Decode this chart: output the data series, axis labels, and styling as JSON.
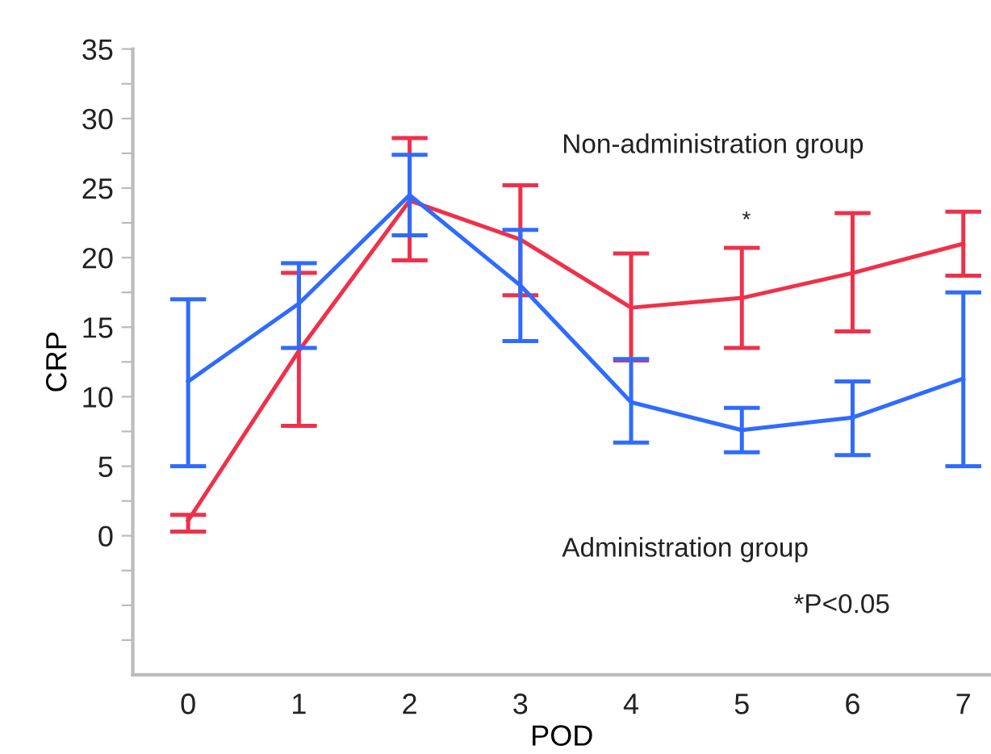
{
  "chart_data": {
    "type": "line",
    "xlabel": "POD",
    "ylabel": "CRP",
    "x": [
      0,
      1,
      2,
      3,
      4,
      5,
      6,
      7
    ],
    "xlim": [
      -0.5,
      7.25
    ],
    "xticks": [
      0,
      1,
      2,
      3,
      4,
      5,
      6,
      7
    ],
    "ylim": [
      -10,
      35
    ],
    "yticks": [
      {
        "value": -7.5,
        "label": null
      },
      {
        "value": -5,
        "label": null
      },
      {
        "value": -2.5,
        "label": null
      },
      0,
      {
        "value": 2.5,
        "label": null
      },
      5,
      {
        "value": 7.5,
        "label": null
      },
      10,
      {
        "value": 12.5,
        "label": null
      },
      15,
      {
        "value": 17.5,
        "label": null
      },
      20,
      {
        "value": 22.5,
        "label": null
      },
      25,
      {
        "value": 27.5,
        "label": null
      },
      30,
      {
        "value": 32.5,
        "label": null
      },
      35
    ],
    "series": [
      {
        "color": "#f0304a",
        "values": [
          1.1,
          13.3,
          24.1,
          21.3,
          16.4,
          17.1,
          18.9,
          21.0
        ],
        "errors": [
          [
            0.3,
            1.5
          ],
          [
            7.9,
            18.9
          ],
          [
            19.8,
            28.6
          ],
          [
            17.3,
            25.2
          ],
          [
            12.6,
            20.3
          ],
          [
            13.5,
            20.7
          ],
          [
            14.7,
            23.2
          ],
          [
            18.7,
            23.3
          ]
        ]
      },
      {
        "color": "#2f6bff",
        "values": [
          11.1,
          16.7,
          24.5,
          18.0,
          9.6,
          7.6,
          8.5,
          11.3
        ],
        "errors": [
          [
            5.0,
            17.0
          ],
          [
            13.5,
            19.6
          ],
          [
            21.6,
            27.4
          ],
          [
            14.0,
            22.0
          ],
          [
            6.7,
            12.7
          ],
          [
            6.0,
            9.2
          ],
          [
            5.8,
            11.1
          ],
          [
            5.0,
            17.5
          ]
        ]
      }
    ],
    "annotations": [
      "Non-administration group",
      "*",
      "Administration group",
      "*P<0.05"
    ],
    "grid": false,
    "legend": false,
    "marker": "none",
    "line_style": "solid"
  }
}
